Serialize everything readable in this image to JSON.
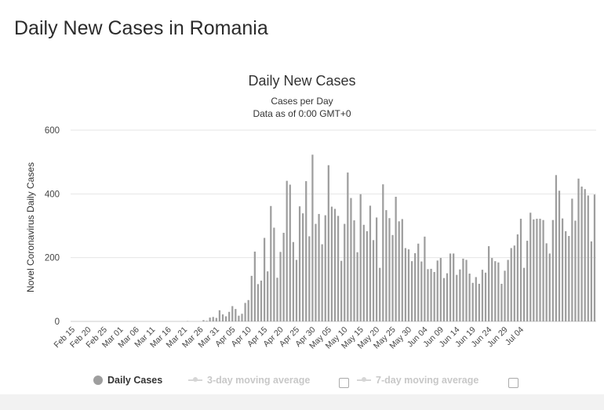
{
  "page": {
    "title": "Daily New Cases in Romania"
  },
  "chart_data": {
    "type": "bar",
    "title": "Daily New Cases",
    "subtitle_lines": [
      "Cases per Day",
      "Data as of 0:00 GMT+0"
    ],
    "ylabel": "Novel Coronavirus Daily Cases",
    "xlabel": "",
    "ylim": [
      0,
      600
    ],
    "y_ticks": [
      0,
      200,
      400,
      600
    ],
    "grid": true,
    "x_tick_labels": [
      "Feb 15",
      "Feb 20",
      "Feb 25",
      "Mar 01",
      "Mar 06",
      "Mar 11",
      "Mar 16",
      "Mar 21",
      "Mar 26",
      "Mar 31",
      "Apr 05",
      "Apr 10",
      "Apr 15",
      "Apr 20",
      "Apr 25",
      "Apr 30",
      "May 05",
      "May 10",
      "May 15",
      "May 20",
      "May 25",
      "May 30",
      "Jun 04",
      "Jun 09",
      "Jun 14",
      "Jun 19",
      "Jun 24",
      "Jun 29",
      "Jul 04"
    ],
    "series": [
      {
        "name": "Daily Cases",
        "color": "#9e9e9e",
        "start_date": "Feb 15",
        "values": [
          0,
          0,
          0,
          0,
          0,
          0,
          0,
          0,
          0,
          0,
          0,
          0,
          0,
          0,
          0,
          0,
          0,
          0,
          0,
          0,
          0,
          0,
          0,
          0,
          0,
          0,
          0,
          0,
          0,
          0,
          0,
          0,
          0,
          0,
          0,
          1,
          0,
          0,
          0,
          0,
          4,
          2,
          12,
          14,
          11,
          35,
          22,
          16,
          30,
          48,
          39,
          18,
          24,
          58,
          67,
          143,
          219,
          117,
          128,
          262,
          157,
          362,
          294,
          137,
          218,
          278,
          441,
          429,
          249,
          193,
          361,
          339,
          440,
          267,
          523,
          306,
          337,
          242,
          333,
          490,
          360,
          353,
          331,
          190,
          306,
          467,
          387,
          317,
          217,
          399,
          303,
          283,
          363,
          255,
          326,
          168,
          430,
          349,
          324,
          271,
          391,
          314,
          321,
          230,
          226,
          189,
          214,
          244,
          188,
          266,
          164,
          165,
          155,
          191,
          199,
          136,
          151,
          213,
          213,
          146,
          163,
          197,
          193,
          150,
          121,
          139,
          118,
          162,
          153,
          236,
          199,
          189,
          185,
          118,
          159,
          193,
          230,
          238,
          273,
          322,
          168,
          253,
          341,
          320,
          322,
          322,
          318,
          245,
          213,
          318,
          459,
          410,
          323,
          283,
          268,
          385,
          316,
          448,
          423,
          415,
          395,
          251,
          398
        ]
      },
      {
        "name": "3-day moving average",
        "color": "#cfcfcf",
        "visible": false
      },
      {
        "name": "7-day moving average",
        "color": "#cfcfcf",
        "visible": false
      }
    ],
    "legend_position": "bottom"
  },
  "colors": {
    "bar": "#9e9e9e",
    "grid": "#e6e6e6",
    "text": "#333333",
    "footer": "#f2f2f2"
  }
}
